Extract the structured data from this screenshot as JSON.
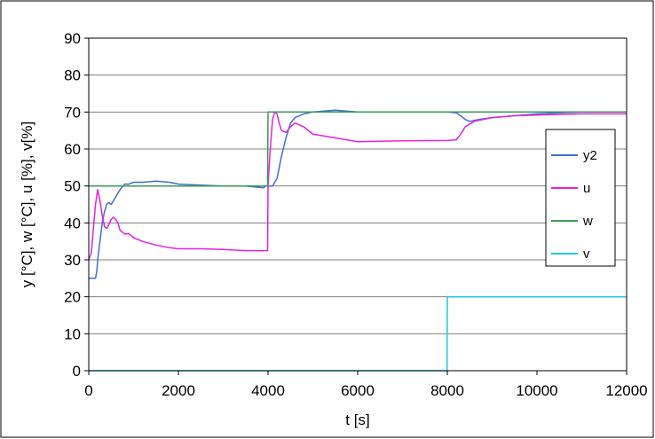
{
  "chart_data": {
    "type": "line",
    "title": "",
    "xlabel": "t [s]",
    "ylabel": "y [°C], w [°C], u [%], v[%]",
    "xlim": [
      0,
      12000
    ],
    "ylim": [
      0,
      90
    ],
    "xticks": [
      0,
      2000,
      4000,
      6000,
      8000,
      10000,
      12000
    ],
    "yticks": [
      0,
      10,
      20,
      30,
      40,
      50,
      60,
      70,
      80,
      90
    ],
    "grid": "horizontal",
    "legend_position": "right",
    "series": [
      {
        "name": "y2",
        "color": "#3f6fd1",
        "x": [
          0,
          150,
          180,
          200,
          250,
          300,
          350,
          400,
          450,
          500,
          600,
          700,
          800,
          900,
          1000,
          1200,
          1500,
          1800,
          2000,
          2500,
          3000,
          3500,
          3900,
          3950,
          4000,
          4100,
          4200,
          4300,
          4400,
          4500,
          4600,
          4800,
          5000,
          5500,
          6000,
          6500,
          7000,
          7500,
          8000,
          8200,
          8300,
          8400,
          8500,
          8700,
          9000,
          9500,
          10000,
          10500,
          11000,
          11500,
          12000
        ],
        "y": [
          25,
          25,
          27,
          30,
          35,
          40,
          43,
          45,
          45.5,
          45,
          47,
          49,
          50.5,
          50.5,
          51,
          51,
          51.3,
          51,
          50.5,
          50.2,
          50,
          50,
          49.5,
          50,
          50,
          50,
          52,
          58,
          63,
          67,
          68.5,
          69.5,
          70,
          70.5,
          70,
          70,
          70,
          70,
          70,
          69.8,
          69,
          68,
          67.5,
          68,
          68.5,
          69,
          69.5,
          69.8,
          70,
          70,
          70
        ]
      },
      {
        "name": "u",
        "color": "#e621e6",
        "x": [
          0,
          60,
          100,
          150,
          200,
          250,
          300,
          350,
          400,
          450,
          500,
          550,
          600,
          650,
          700,
          750,
          800,
          900,
          1000,
          1200,
          1500,
          1800,
          2000,
          2500,
          3000,
          3500,
          3990,
          4000,
          4050,
          4100,
          4150,
          4200,
          4250,
          4300,
          4400,
          4500,
          4600,
          4800,
          5000,
          5500,
          6000,
          7000,
          8000,
          8200,
          8300,
          8400,
          8600,
          9000,
          9500,
          10000,
          11000,
          12000
        ],
        "y": [
          30,
          32,
          38,
          45,
          49,
          46,
          42,
          39,
          38.5,
          39.5,
          41,
          41.5,
          41,
          40,
          38,
          37.5,
          37,
          37,
          36,
          35,
          34,
          33.3,
          33,
          33,
          32.8,
          32.5,
          32.5,
          50,
          60,
          68,
          70,
          69.5,
          67,
          65,
          64.5,
          66,
          67,
          66,
          64,
          63,
          62,
          62.2,
          62.3,
          62.5,
          64,
          66,
          67.5,
          68.5,
          69,
          69.2,
          69.5,
          69.5
        ]
      },
      {
        "name": "w",
        "color": "#3d9a52",
        "x": [
          0,
          3990,
          4000,
          12000
        ],
        "y": [
          50,
          50,
          70,
          70
        ]
      },
      {
        "name": "v",
        "color": "#1fc9e0",
        "x": [
          0,
          7995,
          8000,
          12000
        ],
        "y": [
          0,
          0,
          20,
          20
        ]
      }
    ]
  }
}
